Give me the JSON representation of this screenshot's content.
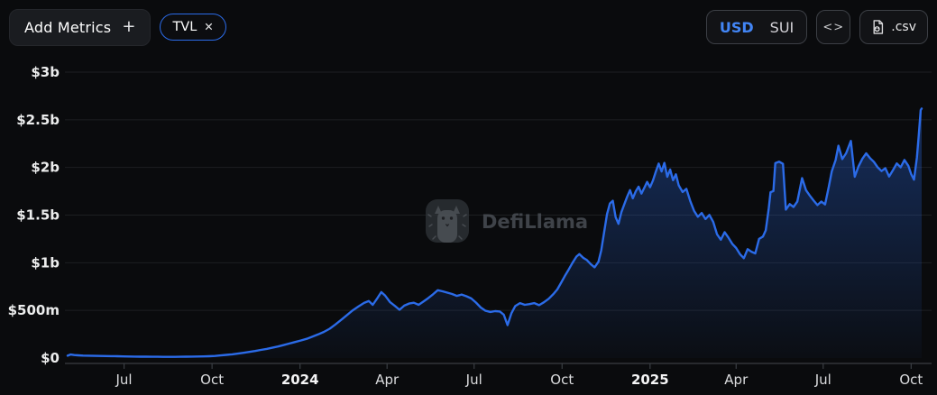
{
  "topbar": {
    "add_metrics": {
      "label": "Add Metrics",
      "plus_icon": "+"
    },
    "metric_chip": {
      "label": "TVL",
      "close_icon": "✕"
    },
    "currency_toggle": {
      "options": [
        {
          "label": "USD",
          "selected": true
        },
        {
          "label": "SUI",
          "selected": false
        }
      ]
    },
    "embed_button": {
      "icon_glyph": "<>"
    },
    "csv_button": {
      "label": ".csv"
    }
  },
  "watermark": {
    "text": "DefiLlama"
  },
  "colors": {
    "background": "#0a0b0d",
    "accent_blue": "#2b6be8",
    "usd_selected": "#4285f5",
    "gridline": "#1d1f22",
    "axis": "#3a3e43",
    "watermark_gray": "#4d5258"
  },
  "chart_data": {
    "type": "area",
    "title": "TVL",
    "unit": "USD",
    "xlabel": "",
    "ylabel": "",
    "grid": "horizontal-only",
    "legend": "none",
    "ylim": [
      0,
      3000
    ],
    "value_unit": "million USD",
    "line_color": "#2b6be8",
    "y_ticks": [
      {
        "value": 0,
        "label": "$0"
      },
      {
        "value": 500,
        "label": "$500m"
      },
      {
        "value": 1000,
        "label": "$1b"
      },
      {
        "value": 1500,
        "label": "$1.5b"
      },
      {
        "value": 2000,
        "label": "$2b"
      },
      {
        "value": 2500,
        "label": "$2.5b"
      },
      {
        "value": 3000,
        "label": "$3b"
      }
    ],
    "x_ticks": [
      {
        "date": "2023-07-01",
        "label": "Jul",
        "bold": false
      },
      {
        "date": "2023-10-01",
        "label": "Oct",
        "bold": false
      },
      {
        "date": "2024-01-01",
        "label": "2024",
        "bold": true
      },
      {
        "date": "2024-04-01",
        "label": "Apr",
        "bold": false
      },
      {
        "date": "2024-07-01",
        "label": "Jul",
        "bold": false
      },
      {
        "date": "2024-10-01",
        "label": "Oct",
        "bold": false
      },
      {
        "date": "2025-01-01",
        "label": "2025",
        "bold": true
      },
      {
        "date": "2025-04-01",
        "label": "Apr",
        "bold": false
      },
      {
        "date": "2025-07-01",
        "label": "Jul",
        "bold": false
      },
      {
        "date": "2025-10-01",
        "label": "Oct",
        "bold": false
      }
    ],
    "points": [
      [
        "2023-05-03",
        25
      ],
      [
        "2023-05-06",
        37
      ],
      [
        "2023-05-10",
        31
      ],
      [
        "2023-05-14",
        28
      ],
      [
        "2023-05-19",
        26
      ],
      [
        "2023-05-25",
        25
      ],
      [
        "2023-05-31",
        23
      ],
      [
        "2023-06-06",
        22
      ],
      [
        "2023-06-12",
        21
      ],
      [
        "2023-06-18",
        20
      ],
      [
        "2023-06-24",
        19
      ],
      [
        "2023-06-30",
        17
      ],
      [
        "2023-07-06",
        16
      ],
      [
        "2023-07-12",
        15
      ],
      [
        "2023-07-18",
        14
      ],
      [
        "2023-07-24",
        14
      ],
      [
        "2023-07-30",
        13
      ],
      [
        "2023-08-05",
        13
      ],
      [
        "2023-08-11",
        12
      ],
      [
        "2023-08-17",
        12
      ],
      [
        "2023-08-23",
        12
      ],
      [
        "2023-08-29",
        13
      ],
      [
        "2023-09-04",
        14
      ],
      [
        "2023-09-10",
        15
      ],
      [
        "2023-09-16",
        16
      ],
      [
        "2023-09-22",
        17
      ],
      [
        "2023-09-28",
        19
      ],
      [
        "2023-10-04",
        22
      ],
      [
        "2023-10-10",
        27
      ],
      [
        "2023-10-16",
        33
      ],
      [
        "2023-10-22",
        39
      ],
      [
        "2023-10-28",
        46
      ],
      [
        "2023-11-03",
        55
      ],
      [
        "2023-11-09",
        64
      ],
      [
        "2023-11-15",
        74
      ],
      [
        "2023-11-21",
        85
      ],
      [
        "2023-11-27",
        96
      ],
      [
        "2023-12-03",
        108
      ],
      [
        "2023-12-09",
        121
      ],
      [
        "2023-12-15",
        136
      ],
      [
        "2023-12-21",
        152
      ],
      [
        "2023-12-27",
        168
      ],
      [
        "2024-01-02",
        185
      ],
      [
        "2024-01-08",
        202
      ],
      [
        "2024-01-14",
        224
      ],
      [
        "2024-01-20",
        248
      ],
      [
        "2024-01-26",
        274
      ],
      [
        "2024-02-01",
        308
      ],
      [
        "2024-02-07",
        352
      ],
      [
        "2024-02-13",
        400
      ],
      [
        "2024-02-19",
        450
      ],
      [
        "2024-02-25",
        500
      ],
      [
        "2024-03-02",
        540
      ],
      [
        "2024-03-08",
        578
      ],
      [
        "2024-03-13",
        598
      ],
      [
        "2024-03-17",
        558
      ],
      [
        "2024-03-22",
        630
      ],
      [
        "2024-03-26",
        692
      ],
      [
        "2024-03-30",
        655
      ],
      [
        "2024-04-04",
        588
      ],
      [
        "2024-04-09",
        548
      ],
      [
        "2024-04-14",
        506
      ],
      [
        "2024-04-19",
        550
      ],
      [
        "2024-04-24",
        572
      ],
      [
        "2024-04-29",
        580
      ],
      [
        "2024-05-04",
        558
      ],
      [
        "2024-05-09",
        592
      ],
      [
        "2024-05-14",
        628
      ],
      [
        "2024-05-19",
        668
      ],
      [
        "2024-05-24",
        712
      ],
      [
        "2024-05-29",
        700
      ],
      [
        "2024-06-03",
        686
      ],
      [
        "2024-06-08",
        672
      ],
      [
        "2024-06-13",
        652
      ],
      [
        "2024-06-18",
        666
      ],
      [
        "2024-06-23",
        648
      ],
      [
        "2024-06-28",
        626
      ],
      [
        "2024-07-03",
        582
      ],
      [
        "2024-07-08",
        530
      ],
      [
        "2024-07-13",
        496
      ],
      [
        "2024-07-18",
        484
      ],
      [
        "2024-07-23",
        492
      ],
      [
        "2024-07-28",
        488
      ],
      [
        "2024-08-01",
        455
      ],
      [
        "2024-08-05",
        345
      ],
      [
        "2024-08-09",
        470
      ],
      [
        "2024-08-13",
        545
      ],
      [
        "2024-08-18",
        576
      ],
      [
        "2024-08-23",
        558
      ],
      [
        "2024-08-28",
        566
      ],
      [
        "2024-09-02",
        576
      ],
      [
        "2024-09-07",
        555
      ],
      [
        "2024-09-12",
        585
      ],
      [
        "2024-09-17",
        622
      ],
      [
        "2024-09-22",
        672
      ],
      [
        "2024-09-26",
        720
      ],
      [
        "2024-09-30",
        790
      ],
      [
        "2024-10-04",
        862
      ],
      [
        "2024-10-08",
        930
      ],
      [
        "2024-10-12",
        1000
      ],
      [
        "2024-10-16",
        1065
      ],
      [
        "2024-10-19",
        1090
      ],
      [
        "2024-10-23",
        1052
      ],
      [
        "2024-10-27",
        1028
      ],
      [
        "2024-10-31",
        985
      ],
      [
        "2024-11-04",
        952
      ],
      [
        "2024-11-08",
        1010
      ],
      [
        "2024-11-11",
        1130
      ],
      [
        "2024-11-14",
        1320
      ],
      [
        "2024-11-17",
        1510
      ],
      [
        "2024-11-20",
        1622
      ],
      [
        "2024-11-23",
        1650
      ],
      [
        "2024-11-26",
        1480
      ],
      [
        "2024-11-29",
        1408
      ],
      [
        "2024-12-02",
        1530
      ],
      [
        "2024-12-05",
        1612
      ],
      [
        "2024-12-08",
        1692
      ],
      [
        "2024-12-11",
        1762
      ],
      [
        "2024-12-14",
        1676
      ],
      [
        "2024-12-17",
        1748
      ],
      [
        "2024-12-20",
        1798
      ],
      [
        "2024-12-23",
        1726
      ],
      [
        "2024-12-26",
        1788
      ],
      [
        "2024-12-29",
        1848
      ],
      [
        "2025-01-01",
        1792
      ],
      [
        "2025-01-04",
        1862
      ],
      [
        "2025-01-07",
        1955
      ],
      [
        "2025-01-10",
        2040
      ],
      [
        "2025-01-13",
        1958
      ],
      [
        "2025-01-16",
        2048
      ],
      [
        "2025-01-19",
        1902
      ],
      [
        "2025-01-22",
        1978
      ],
      [
        "2025-01-25",
        1866
      ],
      [
        "2025-01-28",
        1928
      ],
      [
        "2025-01-31",
        1812
      ],
      [
        "2025-02-04",
        1742
      ],
      [
        "2025-02-08",
        1775
      ],
      [
        "2025-02-12",
        1648
      ],
      [
        "2025-02-16",
        1545
      ],
      [
        "2025-02-20",
        1482
      ],
      [
        "2025-02-24",
        1522
      ],
      [
        "2025-02-28",
        1458
      ],
      [
        "2025-03-04",
        1502
      ],
      [
        "2025-03-08",
        1430
      ],
      [
        "2025-03-12",
        1298
      ],
      [
        "2025-03-16",
        1242
      ],
      [
        "2025-03-20",
        1320
      ],
      [
        "2025-03-24",
        1262
      ],
      [
        "2025-03-28",
        1198
      ],
      [
        "2025-04-01",
        1155
      ],
      [
        "2025-04-05",
        1090
      ],
      [
        "2025-04-09",
        1048
      ],
      [
        "2025-04-13",
        1142
      ],
      [
        "2025-04-17",
        1116
      ],
      [
        "2025-04-21",
        1098
      ],
      [
        "2025-04-25",
        1250
      ],
      [
        "2025-04-29",
        1275
      ],
      [
        "2025-05-02",
        1340
      ],
      [
        "2025-05-05",
        1560
      ],
      [
        "2025-05-07",
        1740
      ],
      [
        "2025-05-10",
        1752
      ],
      [
        "2025-05-12",
        2045
      ],
      [
        "2025-05-16",
        2060
      ],
      [
        "2025-05-20",
        2038
      ],
      [
        "2025-05-23",
        1558
      ],
      [
        "2025-05-27",
        1615
      ],
      [
        "2025-05-31",
        1585
      ],
      [
        "2025-06-04",
        1642
      ],
      [
        "2025-06-09",
        1888
      ],
      [
        "2025-06-13",
        1762
      ],
      [
        "2025-06-17",
        1705
      ],
      [
        "2025-06-21",
        1652
      ],
      [
        "2025-06-25",
        1605
      ],
      [
        "2025-06-29",
        1642
      ],
      [
        "2025-07-03",
        1612
      ],
      [
        "2025-07-07",
        1802
      ],
      [
        "2025-07-10",
        1958
      ],
      [
        "2025-07-14",
        2078
      ],
      [
        "2025-07-17",
        2228
      ],
      [
        "2025-07-21",
        2088
      ],
      [
        "2025-07-25",
        2148
      ],
      [
        "2025-07-30",
        2278
      ],
      [
        "2025-08-03",
        1902
      ],
      [
        "2025-08-07",
        2012
      ],
      [
        "2025-08-11",
        2092
      ],
      [
        "2025-08-15",
        2148
      ],
      [
        "2025-08-19",
        2098
      ],
      [
        "2025-08-23",
        2058
      ],
      [
        "2025-08-27",
        2002
      ],
      [
        "2025-08-31",
        1962
      ],
      [
        "2025-09-04",
        1992
      ],
      [
        "2025-09-08",
        1905
      ],
      [
        "2025-09-12",
        1972
      ],
      [
        "2025-09-16",
        2042
      ],
      [
        "2025-09-20",
        2002
      ],
      [
        "2025-09-24",
        2078
      ],
      [
        "2025-09-28",
        2018
      ],
      [
        "2025-10-01",
        1932
      ],
      [
        "2025-10-04",
        1872
      ],
      [
        "2025-10-07",
        2102
      ],
      [
        "2025-10-09",
        2342
      ],
      [
        "2025-10-11",
        2602
      ],
      [
        "2025-10-12",
        2618
      ]
    ]
  }
}
